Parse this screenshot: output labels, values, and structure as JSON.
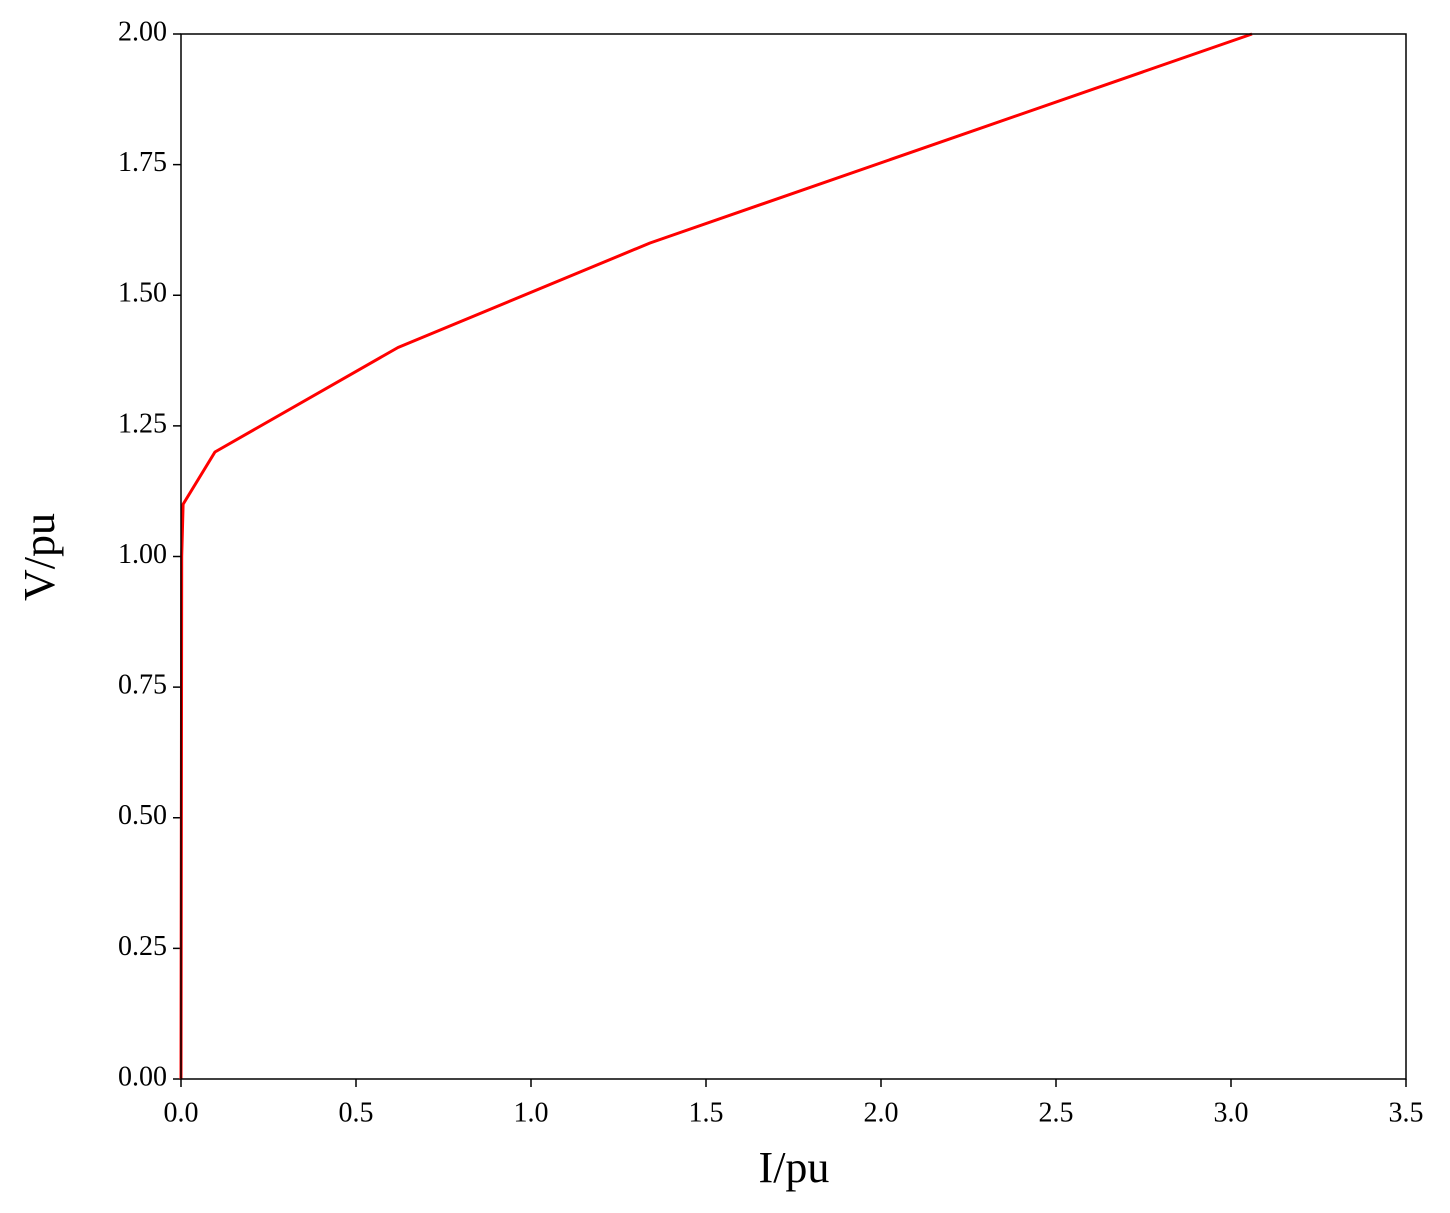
{
  "chart_data": {
    "type": "line",
    "x_label": "I/pu",
    "y_label": "V/pu",
    "x": [
      0,
      0.002,
      0.006,
      0.097,
      0.62,
      1.34,
      3.06
    ],
    "series": [
      {
        "color": "#ff0000",
        "values": [
          0,
          1.0,
          1.1,
          1.2,
          1.4,
          1.6,
          2.0
        ]
      }
    ],
    "xlim": [
      0,
      3.5
    ],
    "xticks": [
      {
        "value": 0,
        "label": "0.0"
      },
      {
        "value": 0.5,
        "label": "0.5"
      },
      {
        "value": 1,
        "label": "1.0"
      },
      {
        "value": 1.5,
        "label": "1.5"
      },
      {
        "value": 2,
        "label": "2.0"
      },
      {
        "value": 2.5,
        "label": "2.5"
      },
      {
        "value": 3,
        "label": "3.0"
      },
      {
        "value": 3.5,
        "label": "3.5"
      }
    ],
    "ylim": [
      0,
      2
    ],
    "yticks": [
      {
        "value": 0,
        "label": "0.00"
      },
      {
        "value": 0.25,
        "label": "0.25"
      },
      {
        "value": 0.5,
        "label": "0.50"
      },
      {
        "value": 0.75,
        "label": "0.75"
      },
      {
        "value": 1,
        "label": "1.00"
      },
      {
        "value": 1.25,
        "label": "1.25"
      },
      {
        "value": 1.5,
        "label": "1.50"
      },
      {
        "value": 1.75,
        "label": "1.75"
      },
      {
        "value": 2,
        "label": "2.00"
      }
    ],
    "grid": false
  }
}
